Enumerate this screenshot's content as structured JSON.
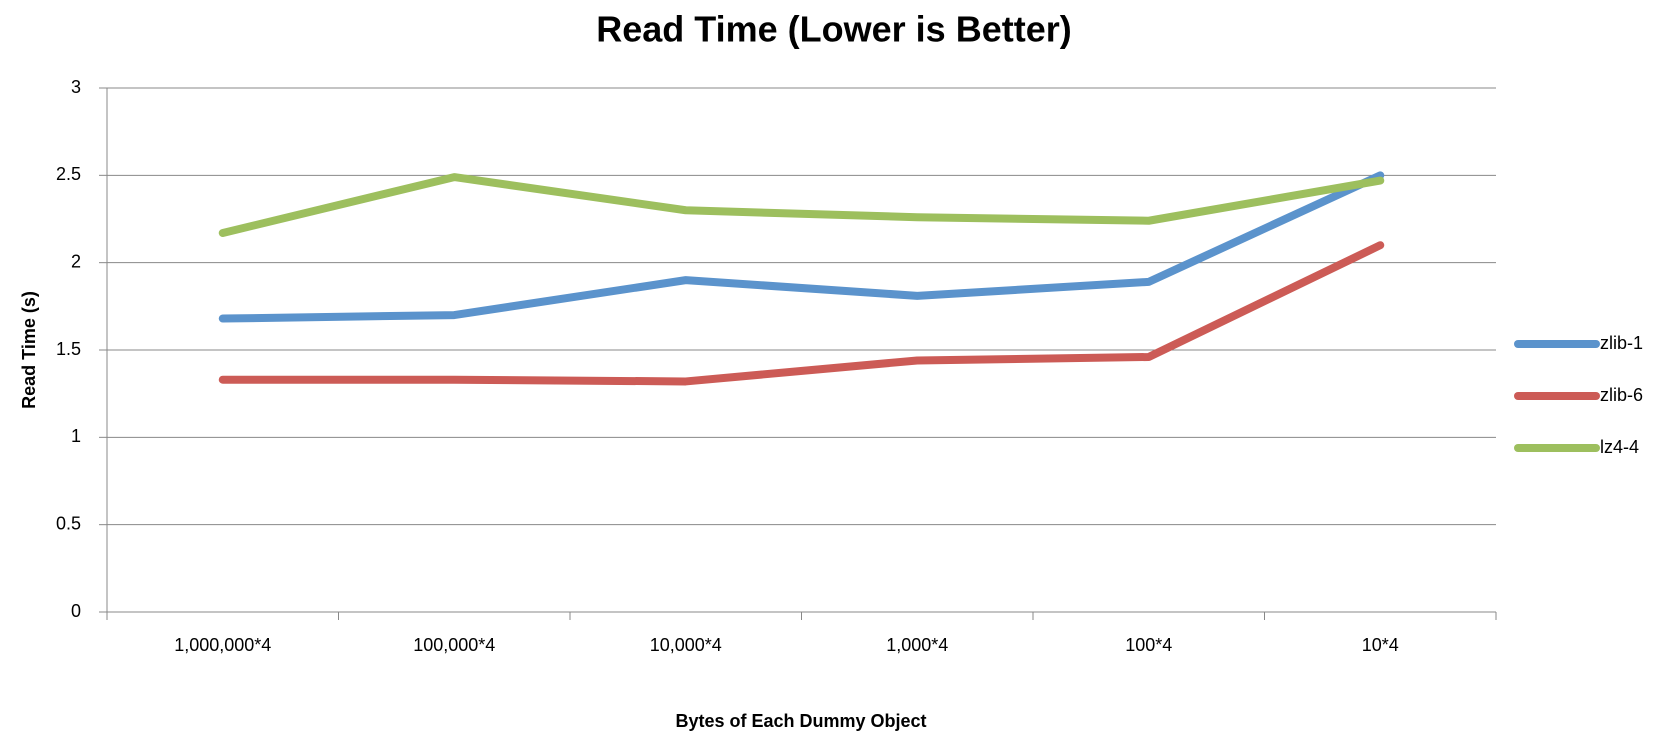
{
  "chart_data": {
    "type": "line",
    "title": "Read Time (Lower is Better)",
    "x_label": "Bytes of Each Dummy Object",
    "y_label": "Read Time (s)",
    "categories": [
      "1,000,000*4",
      "100,000*4",
      "10,000*4",
      "1,000*4",
      "100*4",
      "10*4"
    ],
    "series": [
      {
        "name": "zlib-1",
        "color": "#5b93cc",
        "values": [
          1.68,
          1.7,
          1.9,
          1.81,
          1.89,
          2.5
        ]
      },
      {
        "name": "zlib-6",
        "color": "#cc5b56",
        "values": [
          1.33,
          1.33,
          1.32,
          1.44,
          1.46,
          2.1
        ]
      },
      {
        "name": "lz4-4",
        "color": "#9dbf5e",
        "values": [
          2.17,
          2.49,
          2.3,
          2.26,
          2.24,
          2.47
        ]
      }
    ],
    "ylim": [
      0,
      3
    ],
    "yticks": [
      0,
      0.5,
      1,
      1.5,
      2,
      2.5,
      3
    ],
    "grid": true,
    "legend": "right"
  }
}
